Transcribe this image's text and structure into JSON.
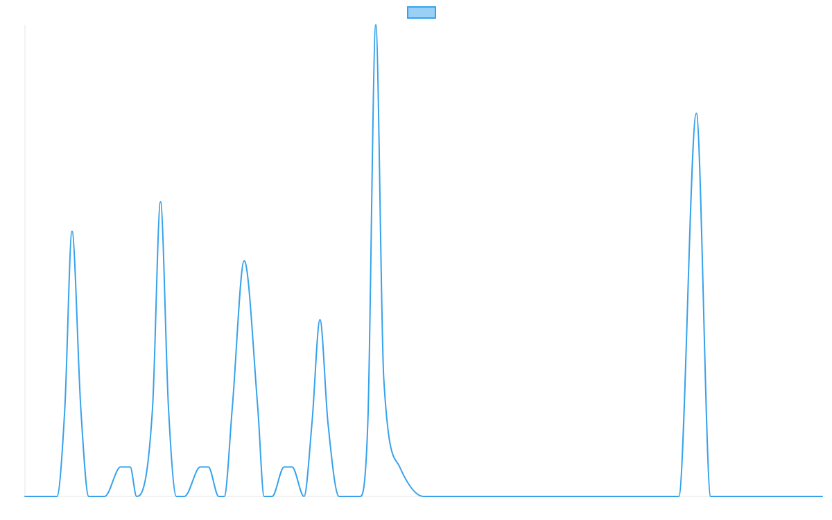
{
  "chart_data": {
    "type": "line",
    "title": "",
    "xlabel": "",
    "ylabel": "",
    "xlim": [
      0,
      100
    ],
    "ylim": [
      0,
      16
    ],
    "grid": false,
    "legend": {
      "position": "top-center"
    },
    "series": [
      {
        "name": "",
        "color": "#36a2eb",
        "fill_color": "#9ad0f5",
        "x": [
          0,
          4,
          5,
          5.9,
          7,
          8,
          10,
          12,
          13.2,
          14,
          16,
          17,
          18,
          19,
          20,
          22,
          23,
          24.3,
          25,
          26,
          27.5,
          29.2,
          30,
          31,
          32.5,
          33.5,
          35,
          36,
          37,
          38,
          39.4,
          41,
          42,
          43,
          44,
          45,
          47,
          50,
          51,
          51.9,
          53,
          54,
          55,
          56,
          57.2,
          58,
          60,
          70,
          80,
          82,
          84.2,
          86,
          88,
          100
        ],
        "y": [
          0,
          0,
          3,
          9,
          3,
          0,
          0,
          1,
          1,
          0,
          3,
          10,
          3,
          0,
          0,
          1,
          1,
          0,
          0,
          3,
          8,
          3,
          0,
          0,
          1,
          1,
          0,
          2.5,
          6,
          2.5,
          0,
          0,
          0,
          2.5,
          16,
          4,
          1,
          0,
          0,
          0,
          0,
          0,
          0,
          0,
          0,
          0,
          0,
          0,
          0,
          0,
          13,
          0,
          0,
          0
        ]
      }
    ]
  }
}
